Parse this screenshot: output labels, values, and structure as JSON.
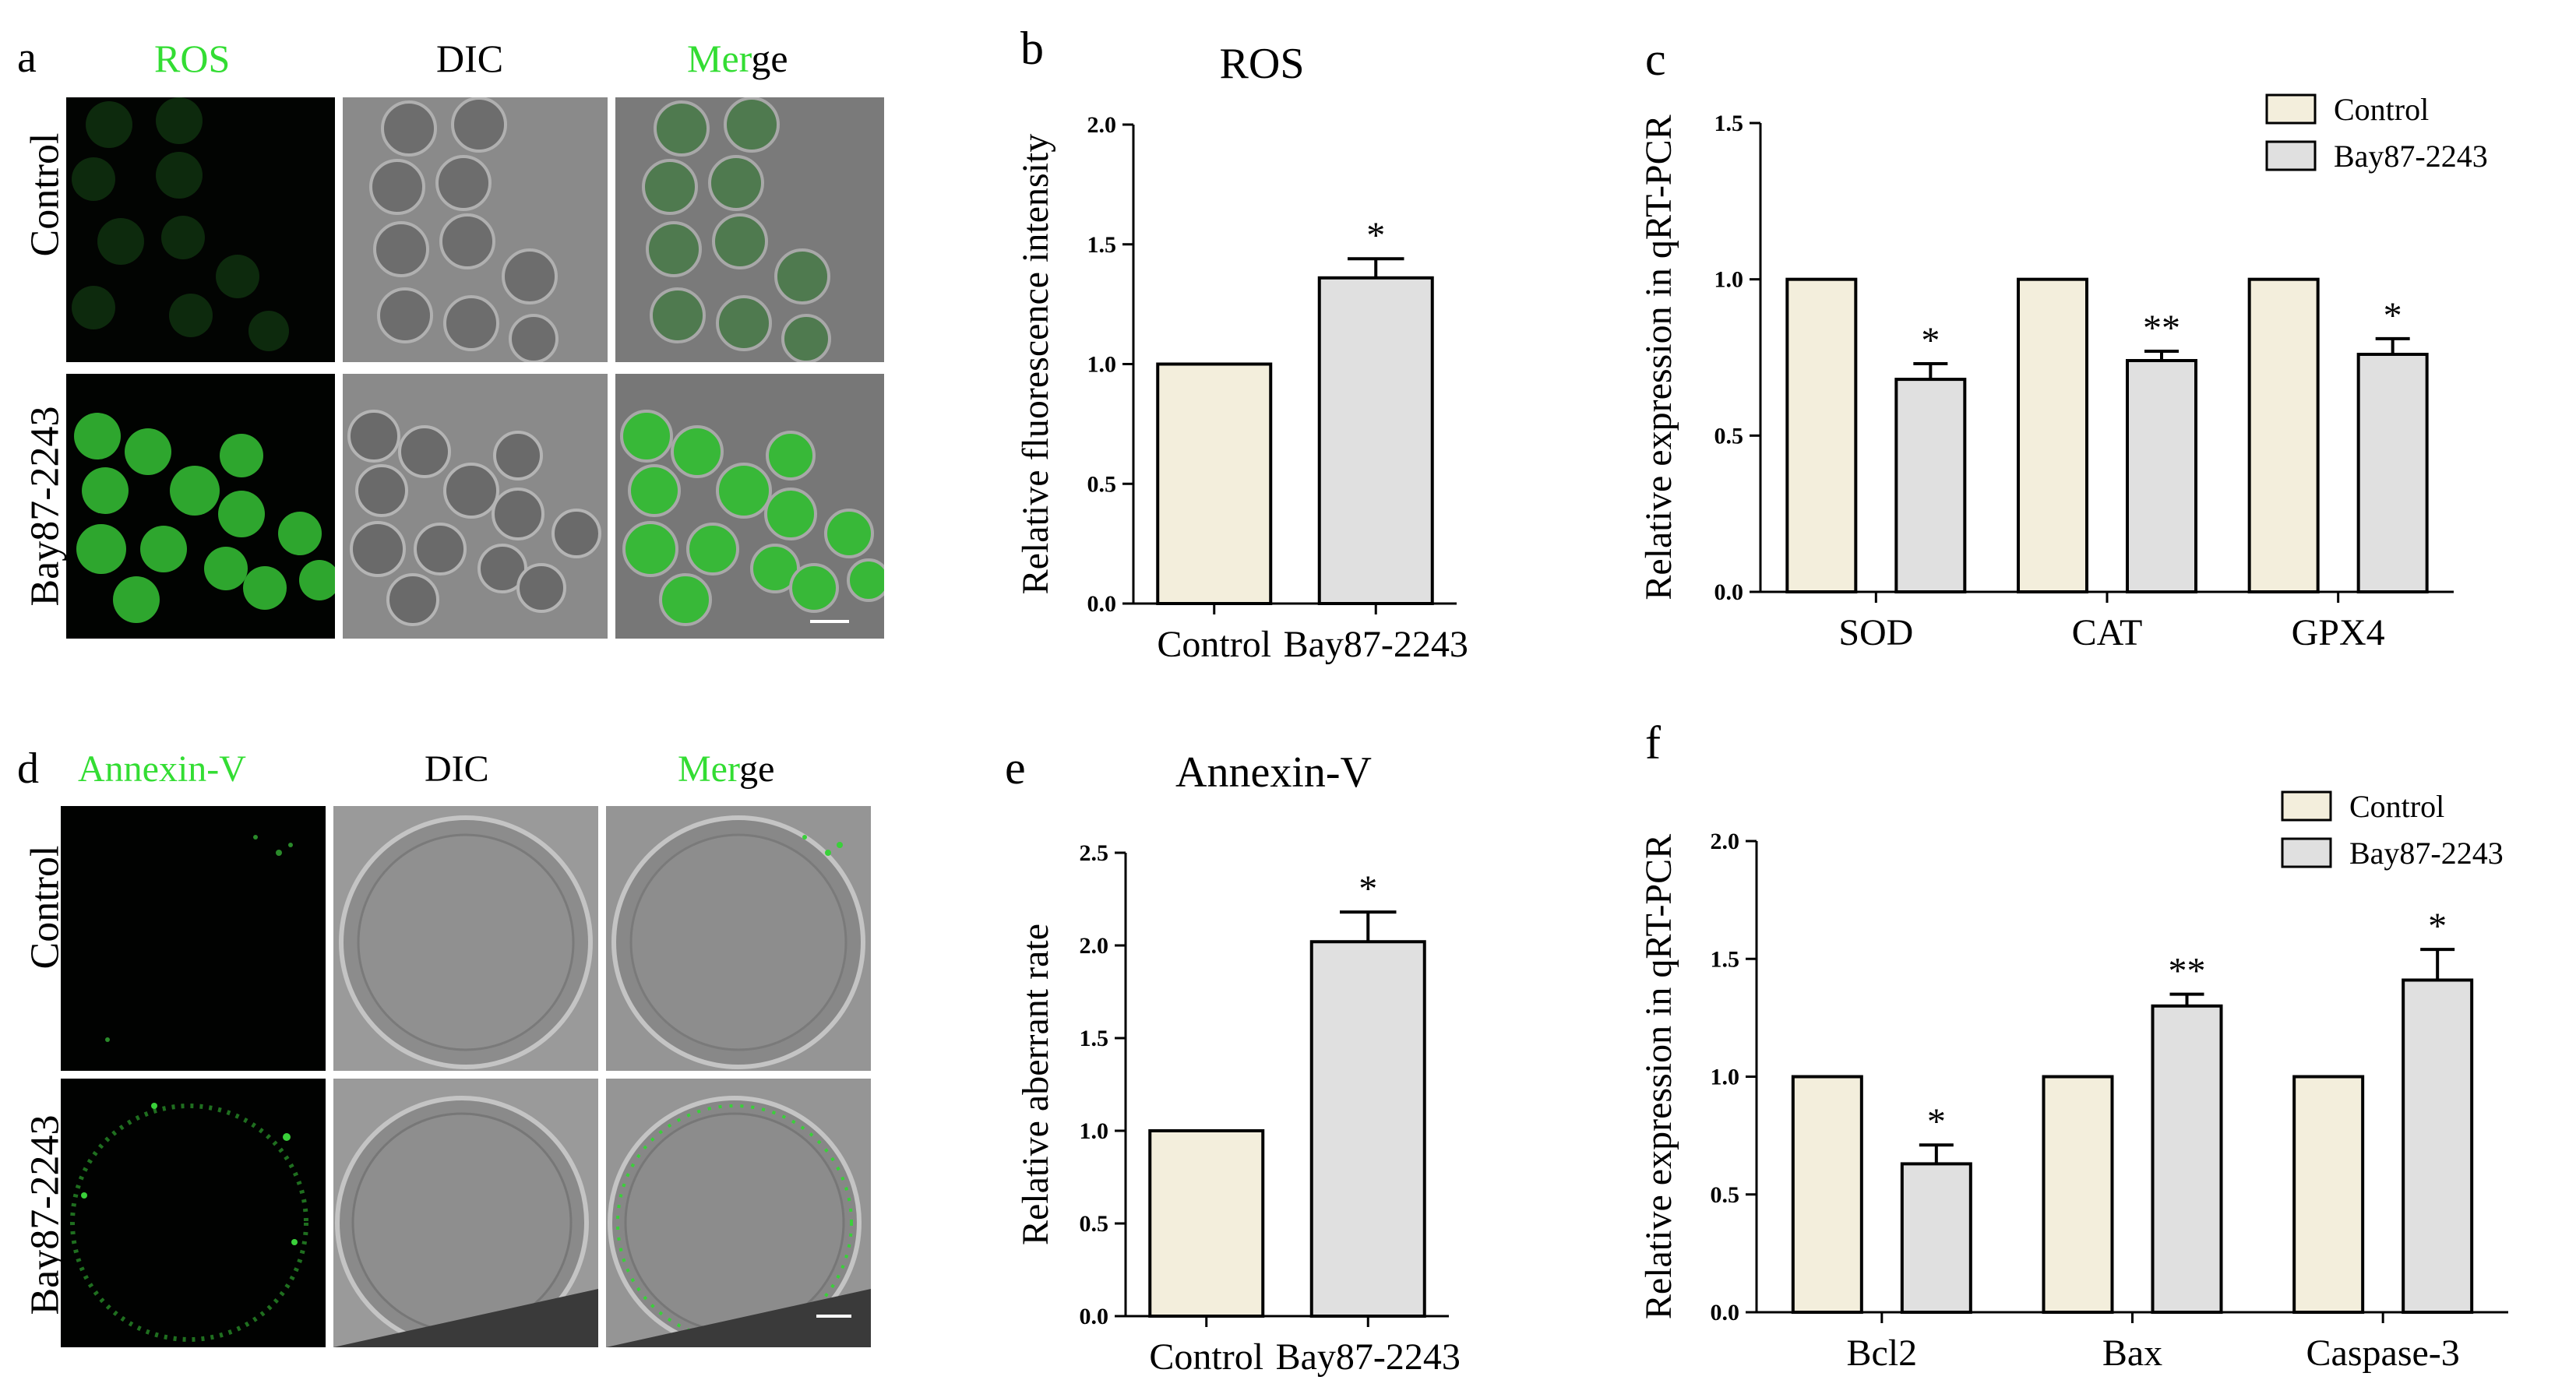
{
  "panel_letters": {
    "a": "a",
    "b": "b",
    "c": "c",
    "d": "d",
    "e": "e",
    "f": "f"
  },
  "panel_a": {
    "headers": [
      {
        "text": "ROS",
        "color": "#33dd33"
      },
      {
        "text": "DIC",
        "color": "#000000"
      },
      {
        "prefix": "Mer",
        "suffix": "ge",
        "prefix_color": "#33dd33"
      }
    ],
    "rows": [
      "Control",
      "Bay87-2243"
    ]
  },
  "panel_d": {
    "headers": [
      {
        "text": "Annexin-V",
        "color": "#33dd33"
      },
      {
        "text": "DIC",
        "color": "#000000"
      },
      {
        "prefix": "Mer",
        "suffix": "ge",
        "prefix_color": "#33dd33"
      }
    ],
    "rows": [
      "Control",
      "Bay87-2243"
    ]
  },
  "colors": {
    "control": "#f3eedc",
    "bay": "#e0e0e0",
    "green": "#33dd33",
    "axis": "#000000"
  },
  "chart_data": [
    {
      "id": "b",
      "type": "bar",
      "title": "ROS",
      "ylabel": "Relative fluorescence intensity",
      "xlabel": "",
      "ylim": [
        0,
        2.0
      ],
      "ticks": [
        "0.0",
        "0.5",
        "1.0",
        "1.5",
        "2.0"
      ],
      "categories": [
        "Control",
        "Bay87-2243"
      ],
      "values": [
        1.0,
        1.36
      ],
      "errors": [
        0,
        0.08
      ],
      "annotations": [
        "",
        "*"
      ]
    },
    {
      "id": "c",
      "type": "bar",
      "title": "",
      "ylabel": "Relative expression in qRT-PCR",
      "xlabel": "",
      "ylim": [
        0,
        1.5
      ],
      "ticks": [
        "0.0",
        "0.5",
        "1.0",
        "1.5"
      ],
      "categories": [
        "SOD",
        "CAT",
        "GPX4"
      ],
      "series": [
        {
          "name": "Control",
          "values": [
            1.0,
            1.0,
            1.0
          ],
          "errors": [
            0,
            0,
            0
          ],
          "annotations": [
            "",
            "",
            ""
          ]
        },
        {
          "name": "Bay87-2243",
          "values": [
            0.68,
            0.74,
            0.76
          ],
          "errors": [
            0.05,
            0.03,
            0.05
          ],
          "annotations": [
            "*",
            "**",
            "*"
          ]
        }
      ],
      "legend": "top-right"
    },
    {
      "id": "e",
      "type": "bar",
      "title": "Annexin-V",
      "ylabel": "Relative aberrant rate",
      "xlabel": "",
      "ylim": [
        0,
        2.5
      ],
      "ticks": [
        "0.0",
        "0.5",
        "1.0",
        "1.5",
        "2.0",
        "2.5"
      ],
      "categories": [
        "Control",
        "Bay87-2243"
      ],
      "values": [
        1.0,
        2.02
      ],
      "errors": [
        0,
        0.16
      ],
      "annotations": [
        "",
        "*"
      ]
    },
    {
      "id": "f",
      "type": "bar",
      "title": "",
      "ylabel": "Relative expression in qRT-PCR",
      "xlabel": "",
      "ylim": [
        0,
        2.0
      ],
      "ticks": [
        "0.0",
        "0.5",
        "1.0",
        "1.5",
        "2.0"
      ],
      "categories": [
        "Bcl2",
        "Bax",
        "Caspase-3"
      ],
      "series": [
        {
          "name": "Control",
          "values": [
            1.0,
            1.0,
            1.0
          ],
          "errors": [
            0,
            0,
            0
          ],
          "annotations": [
            "",
            "",
            ""
          ]
        },
        {
          "name": "Bay87-2243",
          "values": [
            0.63,
            1.3,
            1.41
          ],
          "errors": [
            0.08,
            0.05,
            0.13
          ],
          "annotations": [
            "*",
            "**",
            "*"
          ]
        }
      ],
      "legend": "top-right"
    }
  ]
}
